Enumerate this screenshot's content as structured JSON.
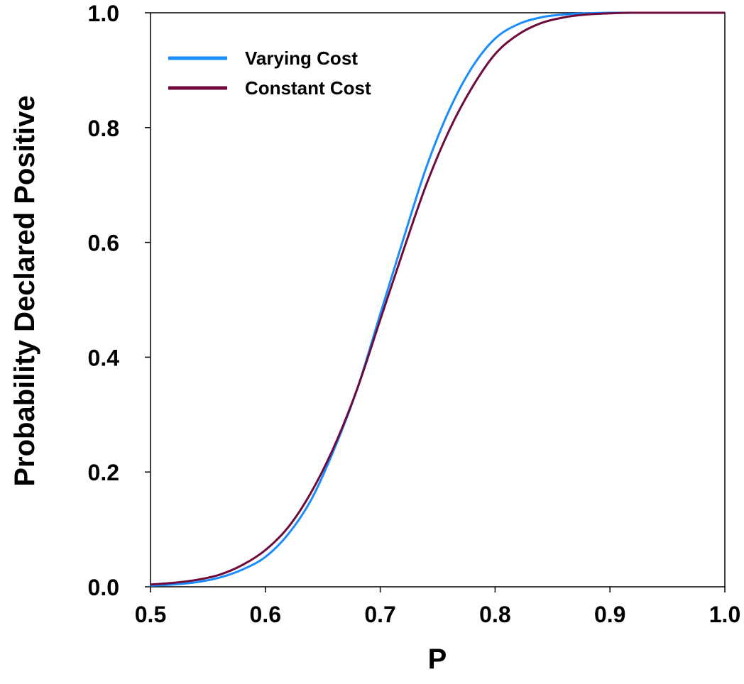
{
  "chart_data": {
    "type": "line",
    "title": "",
    "xlabel": "P",
    "ylabel": "Probability Declared Positive",
    "xlim": [
      0.5,
      1.0
    ],
    "ylim": [
      0.0,
      1.0
    ],
    "xticks": [
      "0.5",
      "0.6",
      "0.7",
      "0.8",
      "0.9",
      "1.0"
    ],
    "yticks": [
      "0.0",
      "0.2",
      "0.4",
      "0.6",
      "0.8",
      "1.0"
    ],
    "grid": false,
    "legend_position": "top-left",
    "x": [
      0.5,
      0.52,
      0.54,
      0.56,
      0.58,
      0.6,
      0.62,
      0.64,
      0.66,
      0.68,
      0.7,
      0.72,
      0.74,
      0.76,
      0.78,
      0.8,
      0.82,
      0.84,
      0.86,
      0.88,
      0.9,
      0.92,
      0.94,
      0.96,
      0.98,
      1.0
    ],
    "series": [
      {
        "name": "Varying Cost",
        "color": "#1a8cff",
        "values": [
          0.002,
          0.004,
          0.008,
          0.016,
          0.03,
          0.052,
          0.092,
          0.152,
          0.24,
          0.345,
          0.475,
          0.605,
          0.73,
          0.83,
          0.905,
          0.955,
          0.98,
          0.992,
          0.997,
          0.999,
          1.0,
          1.0,
          1.0,
          1.0,
          1.0,
          1.0
        ]
      },
      {
        "name": "Constant Cost",
        "color": "#6e0a3c",
        "values": [
          0.004,
          0.007,
          0.012,
          0.021,
          0.038,
          0.064,
          0.104,
          0.165,
          0.245,
          0.345,
          0.465,
          0.585,
          0.7,
          0.795,
          0.87,
          0.928,
          0.962,
          0.982,
          0.992,
          0.997,
          0.999,
          1.0,
          1.0,
          1.0,
          1.0,
          1.0
        ]
      }
    ]
  }
}
